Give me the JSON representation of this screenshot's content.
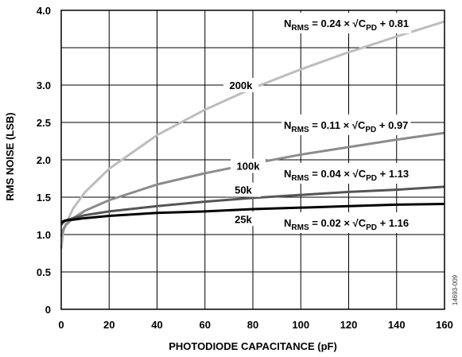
{
  "chart_data": {
    "type": "line",
    "title": "",
    "xlabel": "PHOTODIODE CAPACITANCE (pF)",
    "ylabel": "RMS NOISE (LSB)",
    "xlim": [
      0,
      160
    ],
    "ylim": [
      0,
      4.0
    ],
    "x_ticks": [
      "0",
      "20",
      "40",
      "60",
      "80",
      "100",
      "120",
      "140",
      "160"
    ],
    "y_ticks": [
      "0",
      "0.5",
      "1.0",
      "1.5",
      "2.0",
      "2.5",
      "3.0",
      "4.0"
    ],
    "y_tick_values": [
      0,
      0.5,
      1.0,
      1.5,
      2.0,
      2.5,
      3.0,
      4.0
    ],
    "grid": true,
    "series": [
      {
        "name": "200k",
        "color": "#bdbdbd",
        "a": 0.24,
        "b": 0.81,
        "x": [
          0,
          1,
          2,
          5,
          10,
          20,
          40,
          60,
          80,
          100,
          120,
          140,
          160
        ],
        "y": [
          0.81,
          1.05,
          1.15,
          1.35,
          1.57,
          1.88,
          2.33,
          2.67,
          2.96,
          3.21,
          3.44,
          3.65,
          3.85
        ]
      },
      {
        "name": "100k",
        "color": "#8c8c8c",
        "a": 0.11,
        "b": 0.97,
        "x": [
          0,
          1,
          2,
          5,
          10,
          20,
          40,
          60,
          80,
          100,
          120,
          140,
          160
        ],
        "y": [
          0.97,
          1.08,
          1.13,
          1.22,
          1.32,
          1.46,
          1.67,
          1.82,
          1.95,
          2.07,
          2.17,
          2.27,
          2.36
        ]
      },
      {
        "name": "50k",
        "color": "#555555",
        "a": 0.04,
        "b": 1.13,
        "x": [
          0,
          1,
          2,
          5,
          10,
          20,
          40,
          60,
          80,
          100,
          120,
          140,
          160
        ],
        "y": [
          1.13,
          1.17,
          1.19,
          1.22,
          1.26,
          1.31,
          1.38,
          1.44,
          1.49,
          1.53,
          1.57,
          1.6,
          1.64
        ]
      },
      {
        "name": "25k",
        "color": "#000000",
        "a": 0.02,
        "b": 1.16,
        "x": [
          0,
          1,
          2,
          5,
          10,
          20,
          40,
          60,
          80,
          100,
          120,
          140,
          160
        ],
        "y": [
          1.16,
          1.18,
          1.19,
          1.2,
          1.22,
          1.25,
          1.29,
          1.31,
          1.34,
          1.36,
          1.38,
          1.4,
          1.41
        ]
      }
    ],
    "annotations": [
      {
        "id": "200k",
        "lhs": "N",
        "lhs_sub": "RMS",
        "mid": " = 0.24 × √C",
        "mid_sub": "PD",
        "rhs": " + 0.81"
      },
      {
        "id": "100k",
        "lhs": "N",
        "lhs_sub": "RMS",
        "mid": " = 0.11 × √C",
        "mid_sub": "PD",
        "rhs": " + 0.97"
      },
      {
        "id": "50k",
        "lhs": "N",
        "lhs_sub": "RMS",
        "mid": " = 0.04 × √C",
        "mid_sub": "PD",
        "rhs": " + 1.13"
      },
      {
        "id": "25k",
        "lhs": "N",
        "lhs_sub": "RMS",
        "mid": " = 0.02 × √C",
        "mid_sub": "PD",
        "rhs": " + 1.16"
      }
    ],
    "figure_id": "14693-009"
  }
}
